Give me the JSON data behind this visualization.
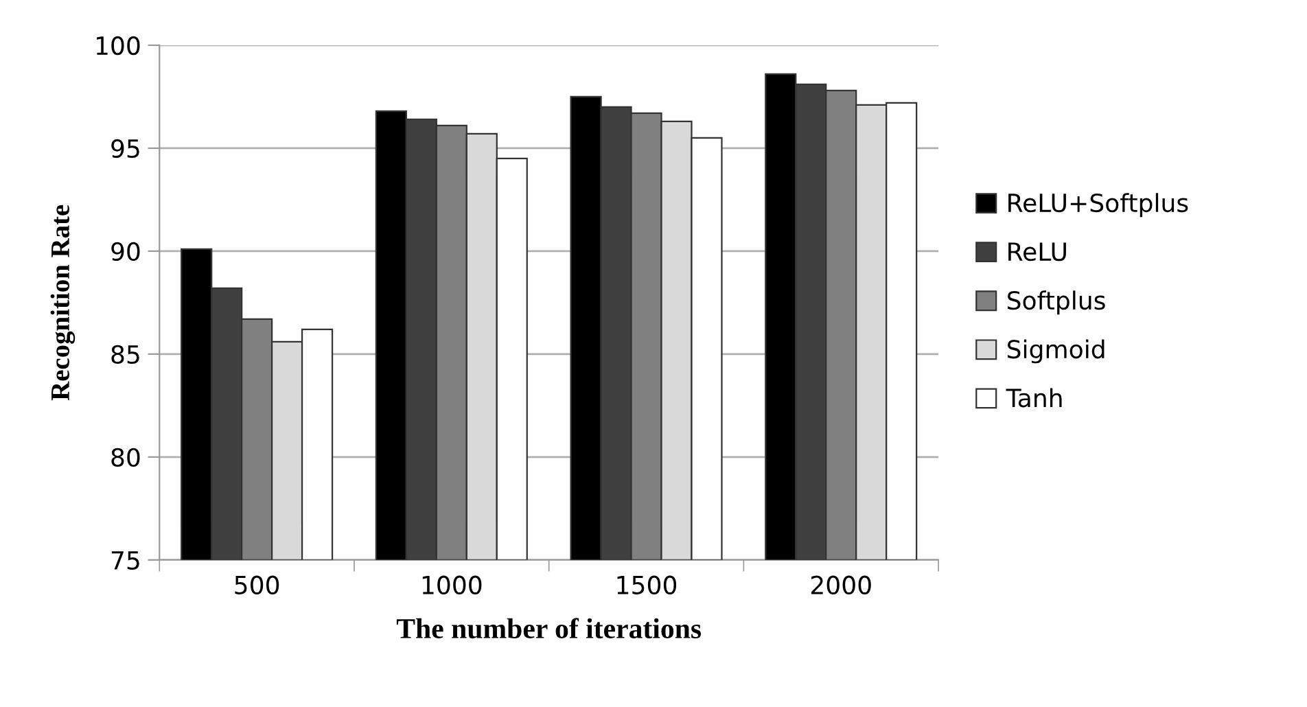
{
  "chart_data": {
    "type": "bar",
    "xlabel": "The number of iterations",
    "ylabel": "Recognition Rate",
    "categories": [
      "500",
      "1000",
      "1500",
      "2000"
    ],
    "series": [
      {
        "name": "ReLU+Softplus",
        "color": "#000000",
        "values": [
          90.1,
          96.8,
          97.5,
          98.6
        ]
      },
      {
        "name": "ReLU",
        "color": "#404040",
        "values": [
          88.2,
          96.4,
          97.0,
          98.1
        ]
      },
      {
        "name": "Softplus",
        "color": "#808080",
        "values": [
          86.7,
          96.1,
          96.7,
          97.8
        ]
      },
      {
        "name": "Sigmoid",
        "color": "#d9d9d9",
        "values": [
          85.6,
          95.7,
          96.3,
          97.1
        ]
      },
      {
        "name": "Tanh",
        "color": "#ffffff",
        "values": [
          86.2,
          94.5,
          95.5,
          97.2
        ]
      }
    ],
    "ylim": [
      75,
      100
    ],
    "yticks": [
      75,
      80,
      85,
      90,
      95,
      100
    ],
    "grid": "y",
    "legend": "right"
  }
}
